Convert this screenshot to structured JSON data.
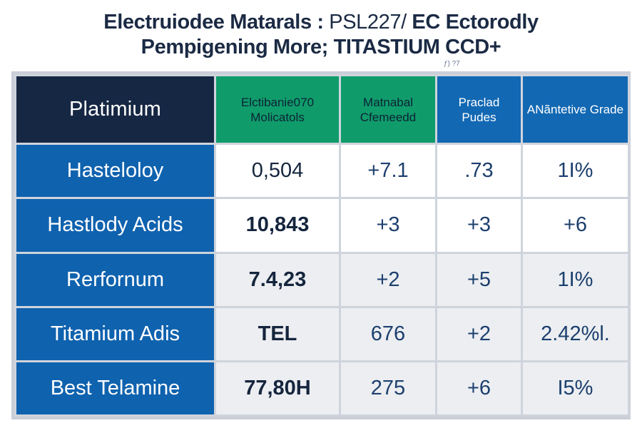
{
  "chart_data": {
    "type": "table",
    "title_line1_a": "Electruiodee Mataral",
    "title_line1_b": "s :",
    "title_line1_c": "PSL227/",
    "title_line1_d": "EC Ectorodly",
    "title_line2": "Pempigening More; TITASTIUM CCD+",
    "note": "ƒ) ?7",
    "columns": [
      "Platimium",
      "Elctibanie070 Molicatols",
      "Matnabal Cfemeedd",
      "Praclad Pudes",
      "ANãntetive Grade"
    ],
    "rows": [
      {
        "label": "Hasteloloy",
        "values": [
          "0,504",
          "+7.1",
          ".73",
          "1I%"
        ]
      },
      {
        "label": "Hastlody Acids",
        "values": [
          "10,843",
          "+3",
          "+3",
          "+6"
        ]
      },
      {
        "label": "Rerfornum",
        "values": [
          "7.4,23",
          "+2",
          "+5",
          "1I%"
        ]
      },
      {
        "label": "Titamium Adis",
        "values": [
          "TEL",
          "676",
          "+2",
          "2.42%l."
        ]
      },
      {
        "label": "Best Telamine",
        "values": [
          "77,80H",
          "275",
          "+6",
          "I5%"
        ]
      }
    ],
    "colors": {
      "header_dark": "#162744",
      "header_green": "#0f9c6a",
      "header_blue": "#1268b3",
      "row_label_blue": "#0f62ae",
      "grid_line": "#cfd4dc",
      "value_text": "#1c3f6e"
    }
  }
}
